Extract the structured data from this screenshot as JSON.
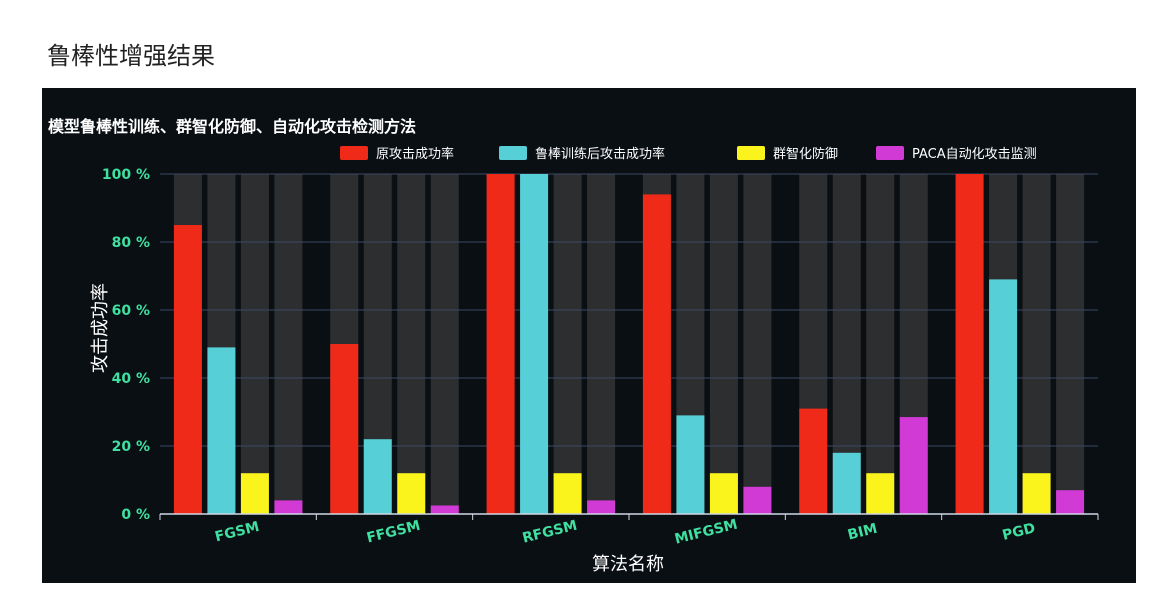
{
  "page": {
    "heading": "鲁棒性增强结果"
  },
  "colors": {
    "panel_bg": "#0a0f14",
    "bg_column": "#3a3a3a",
    "grid": "#3a4a66",
    "tick_label": "#3fe0a0"
  },
  "chart_data": {
    "type": "bar",
    "title": "模型鲁棒性训练、群智化防御、自动化攻击检测方法",
    "xlabel": "算法名称",
    "ylabel": "攻击成功率",
    "categories": [
      "FGSM",
      "FFGSM",
      "RFGSM",
      "MIFGSM",
      "BIM",
      "PGD"
    ],
    "ylim": [
      0,
      100
    ],
    "yticks": [
      {
        "value": 0,
        "label": "0 %"
      },
      {
        "value": 20,
        "label": "20 %"
      },
      {
        "value": 40,
        "label": "40 %"
      },
      {
        "value": 60,
        "label": "60 %"
      },
      {
        "value": 80,
        "label": "80 %"
      },
      {
        "value": 100,
        "label": "100 %"
      }
    ],
    "grid": true,
    "legend_position": "top-right",
    "series": [
      {
        "name": "原攻击成功率",
        "color": "#f02a18",
        "values": [
          85,
          50,
          100,
          94,
          31,
          100
        ]
      },
      {
        "name": "鲁棒训练后攻击成功率",
        "color": "#56d0d6",
        "values": [
          49,
          22,
          100,
          29,
          18,
          69
        ]
      },
      {
        "name": "群智化防御",
        "color": "#fbf41c",
        "values": [
          12,
          12,
          12,
          12,
          12,
          12
        ]
      },
      {
        "name": "PACA自动化攻击监测",
        "color": "#d23ad6",
        "values": [
          4,
          2.5,
          4,
          8,
          28.5,
          7
        ]
      }
    ]
  }
}
